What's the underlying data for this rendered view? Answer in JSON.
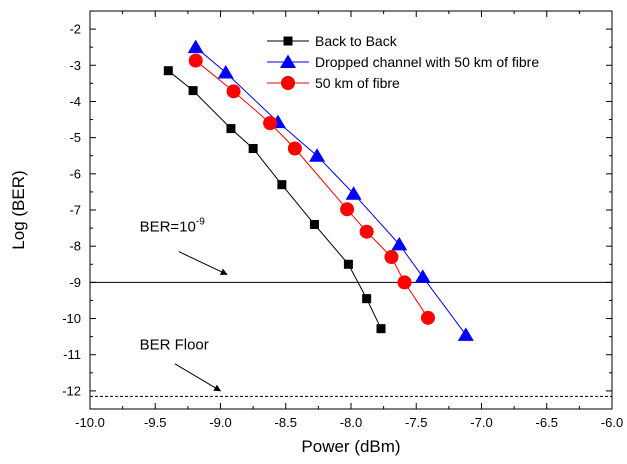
{
  "chart_data": {
    "type": "line",
    "title": "",
    "xlabel": "Power (dBm)",
    "ylabel": "Log (BER)",
    "xlim": [
      -10.0,
      -6.0
    ],
    "ylim": [
      -12.5,
      -1.5
    ],
    "xticks": [
      -10.0,
      -9.5,
      -9.0,
      -8.5,
      -8.0,
      -7.5,
      -7.0,
      -6.5,
      -6.0
    ],
    "xtick_labels": [
      "-10.0",
      "-9.5",
      "-9.0",
      "-8.5",
      "-8.0",
      "-7.5",
      "-7.0",
      "-6.5",
      "-6.0"
    ],
    "yticks": [
      -2,
      -3,
      -4,
      -5,
      -6,
      -7,
      -8,
      -9,
      -10,
      -11,
      -12
    ],
    "ytick_labels": [
      "-2",
      "-3",
      "-4",
      "-5",
      "-6",
      "-7",
      "-8",
      "-9",
      "-10",
      "-11",
      "-12"
    ],
    "grid": false,
    "legend_position": "top-right",
    "series": [
      {
        "name": "Back to Back",
        "marker": "square",
        "color": "#000000",
        "line_color": "#000000",
        "x": [
          -9.4,
          -9.21,
          -8.92,
          -8.75,
          -8.53,
          -8.28,
          -8.02,
          -7.88,
          -7.77
        ],
        "y": [
          -3.15,
          -3.7,
          -4.75,
          -5.3,
          -6.3,
          -7.4,
          -8.5,
          -9.45,
          -10.28
        ]
      },
      {
        "name": "Dropped channel with 50 km of fibre",
        "marker": "triangle",
        "color": "#0000ff",
        "line_color": "#0000ff",
        "x": [
          -9.19,
          -8.96,
          -8.56,
          -8.26,
          -7.98,
          -7.63,
          -7.45,
          -7.12
        ],
        "y": [
          -2.5,
          -3.2,
          -4.57,
          -5.5,
          -6.55,
          -7.95,
          -8.85,
          -10.45
        ]
      },
      {
        "name": "50 km of fibre",
        "marker": "circle",
        "color": "#ff0000",
        "line_color": "#ff0000",
        "x": [
          -9.19,
          -8.9,
          -8.62,
          -8.43,
          -8.03,
          -7.88,
          -7.69,
          -7.59,
          -7.41
        ],
        "y": [
          -2.87,
          -3.72,
          -4.6,
          -5.3,
          -6.98,
          -7.6,
          -8.3,
          -9.0,
          -9.98
        ]
      }
    ],
    "reference_lines": [
      {
        "name": "BER=10^-9",
        "y": -9.0,
        "style": "solid"
      },
      {
        "name": "BER Floor",
        "y": -12.15,
        "style": "dashed"
      }
    ],
    "annotations": [
      {
        "text": "BER=10",
        "sup": "-9",
        "text_x": -9.62,
        "text_y": -7.6,
        "arrow_from": [
          -9.32,
          -8.15
        ],
        "arrow_to": [
          -8.95,
          -8.78
        ]
      },
      {
        "text": "BER Floor",
        "sup": "",
        "text_x": -9.62,
        "text_y": -10.85,
        "arrow_from": [
          -9.35,
          -11.25
        ],
        "arrow_to": [
          -9.0,
          -12.0
        ]
      }
    ]
  }
}
